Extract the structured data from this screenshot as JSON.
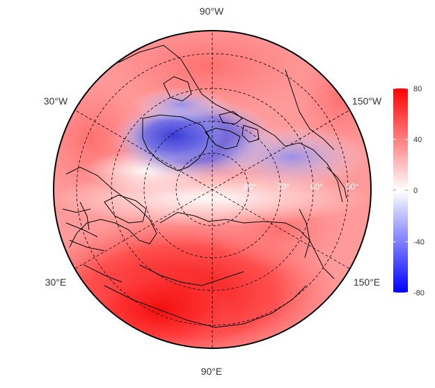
{
  "map": {
    "projection": "north-polar stereographic",
    "field": "anomaly",
    "longitude_labels": {
      "top": "90°W",
      "bottom": "90°E",
      "upper_left": "30°W",
      "upper_right": "150°W",
      "lower_left": "30°E",
      "lower_right": "150°E"
    },
    "latitude_labels": [
      "80°",
      "70°",
      "60°",
      "50°"
    ],
    "colors": {
      "positive": "#ff0000",
      "neutral": "#ffffff",
      "negative": "#0000ff",
      "coastline": "#000000"
    }
  },
  "colorbar": {
    "min": -80,
    "max": 80,
    "ticks": [
      "80",
      "40",
      "0",
      "-40",
      "-80"
    ]
  }
}
